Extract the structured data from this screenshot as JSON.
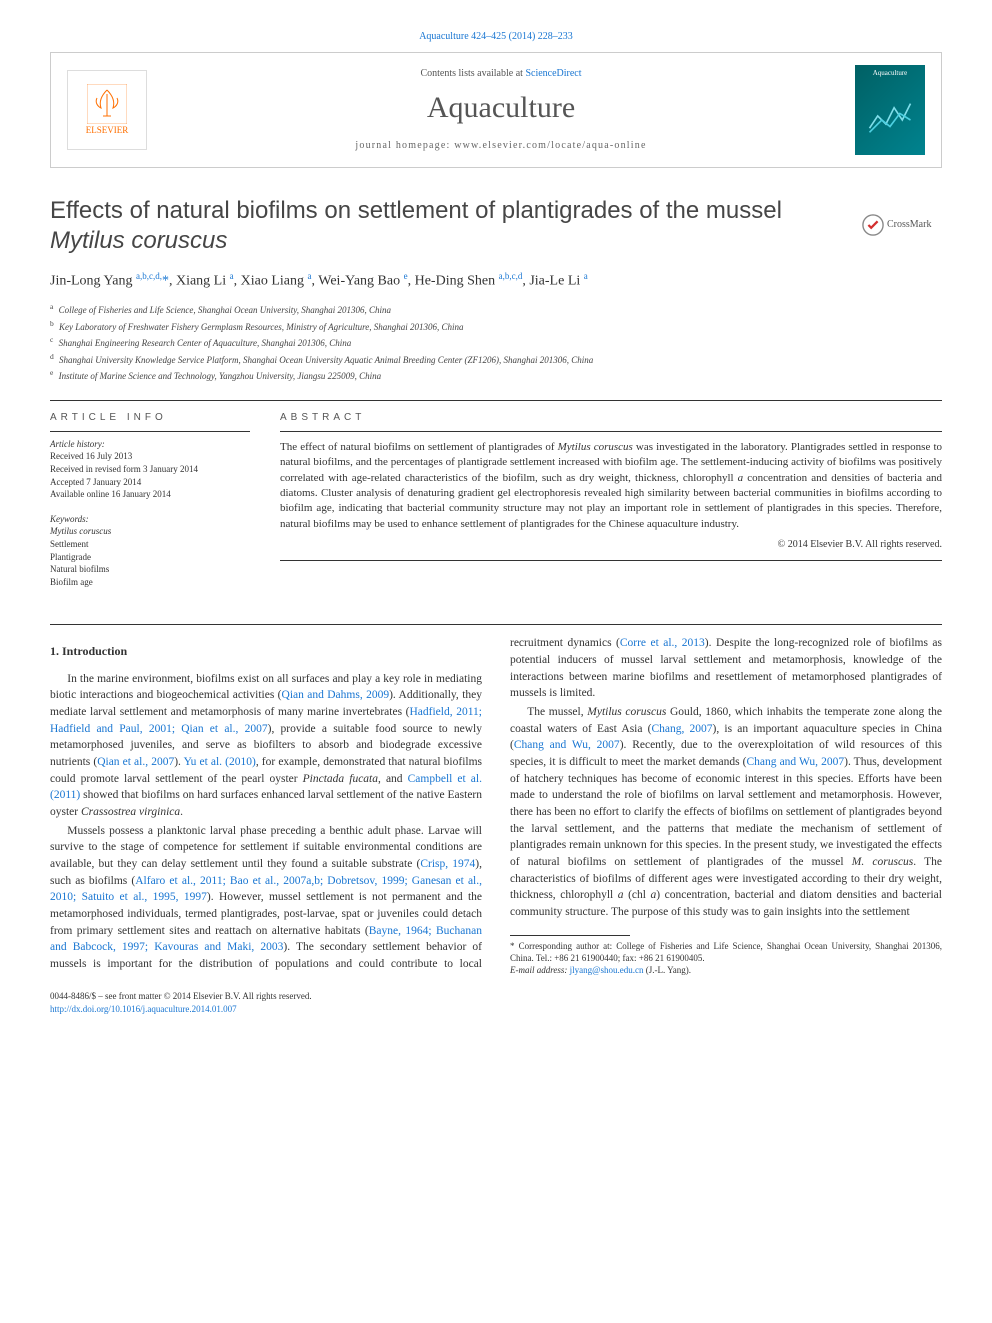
{
  "journal_link": "Aquaculture 424–425 (2014) 228–233",
  "header": {
    "contents": "Contents lists available at ",
    "contents_link": "ScienceDirect",
    "journal": "Aquaculture",
    "homepage": "journal homepage: www.elsevier.com/locate/aqua-online",
    "publisher": "ELSEVIER",
    "cover_title": "Aquaculture"
  },
  "crossmark": "CrossMark",
  "title_part1": "Effects of natural biofilms on settlement of plantigrades of the mussel ",
  "title_part2": "Mytilus coruscus",
  "authors_html": "Jin-Long Yang <sup><a>a,b,c,d,</a></sup><a>*</a>, Xiang Li <sup><a>a</a></sup>, Xiao Liang <sup><a>a</a></sup>, Wei-Yang Bao <sup><a>e</a></sup>, He-Ding Shen <sup><a>a,b,c,d</a></sup>, Jia-Le Li <sup><a>a</a></sup>",
  "affiliations": [
    {
      "sup": "a",
      "text": "College of Fisheries and Life Science, Shanghai Ocean University, Shanghai 201306, China"
    },
    {
      "sup": "b",
      "text": "Key Laboratory of Freshwater Fishery Germplasm Resources, Ministry of Agriculture, Shanghai 201306, China"
    },
    {
      "sup": "c",
      "text": "Shanghai Engineering Research Center of Aquaculture, Shanghai 201306, China"
    },
    {
      "sup": "d",
      "text": "Shanghai University Knowledge Service Platform, Shanghai Ocean University Aquatic Animal Breeding Center (ZF1206), Shanghai 201306, China"
    },
    {
      "sup": "e",
      "text": "Institute of Marine Science and Technology, Yangzhou University, Jiangsu 225009, China"
    }
  ],
  "info": {
    "heading": "article info",
    "history_label": "Article history:",
    "history": [
      "Received 16 July 2013",
      "Received in revised form 3 January 2014",
      "Accepted 7 January 2014",
      "Available online 16 January 2014"
    ],
    "keywords_label": "Keywords:",
    "keywords": [
      "Mytilus coruscus",
      "Settlement",
      "Plantigrade",
      "Natural biofilms",
      "Biofilm age"
    ]
  },
  "abstract": {
    "heading": "abstract",
    "text_parts": [
      "The effect of natural biofilms on settlement of plantigrades of ",
      "Mytilus coruscus",
      " was investigated in the laboratory. Plantigrades settled in response to natural biofilms, and the percentages of plantigrade settlement increased with biofilm age. The settlement-inducing activity of biofilms was positively correlated with age-related characteristics of the biofilm, such as dry weight, thickness, chlorophyll ",
      "a",
      " concentration and densities of bacteria and diatoms. Cluster analysis of denaturing gradient gel electrophoresis revealed high similarity between bacterial communities in biofilms according to biofilm age, indicating that bacterial community structure may not play an important role in settlement of plantigrades in this species. Therefore, natural biofilms may be used to enhance settlement of plantigrades for the Chinese aquaculture industry."
    ],
    "copyright": "© 2014 Elsevier B.V. All rights reserved."
  },
  "body": {
    "section_heading": "1. Introduction",
    "p1": "In the marine environment, biofilms exist on all surfaces and play a key role in mediating biotic interactions and biogeochemical activities (<a>Qian and Dahms, 2009</a>). Additionally, they mediate larval settlement and metamorphosis of many marine invertebrates (<a>Hadfield, 2011; Hadfield and Paul, 2001; Qian et al., 2007</a>), provide a suitable food source to newly metamorphosed juveniles, and serve as biofilters to absorb and biodegrade excessive nutrients (<a>Qian et al., 2007</a>). <a>Yu et al. (2010)</a>, for example, demonstrated that natural biofilms could promote larval settlement of the pearl oyster <span class=\"italic\">Pinctada fucata</span>, and <a>Campbell et al. (2011)</a> showed that biofilms on hard surfaces enhanced larval settlement of the native Eastern oyster <span class=\"italic\">Crassostrea virginica</span>.",
    "p2": "Mussels possess a planktonic larval phase preceding a benthic adult phase. Larvae will survive to the stage of competence for settlement if suitable environmental conditions are available, but they can delay settlement until they found a suitable substrate (<a>Crisp, 1974</a>), such as biofilms (<a>Alfaro et al., 2011; Bao et al., 2007a,b; Dobretsov, 1999; Ganesan et al., 2010; Satuito et al., 1995, 1997</a>). However, mussel settlement is not permanent and the metamorphosed individuals, termed plantigrades, post-larvae, spat or juveniles could detach from primary settlement sites and reattach on alternative habitats (<a>Bayne, 1964; Buchanan and Babcock, 1997; Kavouras and Maki, 2003</a>). The secondary settlement behavior of mussels is important for the distribution of populations and could contribute to local recruitment dynamics (<a>Corre et al., 2013</a>). Despite the long-recognized role of biofilms as potential inducers of mussel larval settlement and metamorphosis, knowledge of the interactions between marine biofilms and resettlement of metamorphosed plantigrades of mussels is limited.",
    "p3": "The mussel, <span class=\"italic\">Mytilus coruscus</span> Gould, 1860, which inhabits the temperate zone along the coastal waters of East Asia (<a>Chang, 2007</a>), is an important aquaculture species in China (<a>Chang and Wu, 2007</a>). Recently, due to the overexploitation of wild resources of this species, it is difficult to meet the market demands (<a>Chang and Wu, 2007</a>). Thus, development of hatchery techniques has become of economic interest in this species. Efforts have been made to understand the role of biofilms on larval settlement and metamorphosis. However, there has been no effort to clarify the effects of biofilms on settlement of plantigrades beyond the larval settlement, and the patterns that mediate the mechanism of settlement of plantigrades remain unknown for this species. In the present study, we investigated the effects of natural biofilms on settlement of plantigrades of the mussel <span class=\"italic\">M. coruscus</span>. The characteristics of biofilms of different ages were investigated according to their dry weight, thickness, chlorophyll <span class=\"italic\">a</span> (chl <span class=\"italic\">a</span>) concentration, bacterial and diatom densities and bacterial community structure. The purpose of this study was to gain insights into the settlement"
  },
  "footnote": {
    "corr": "* Corresponding author at: College of Fisheries and Life Science, Shanghai Ocean University, Shanghai 201306, China. Tel.: +86 21 61900440; fax: +86 21 61900405.",
    "email_label": "E-mail address:",
    "email": "jlyang@shou.edu.cn",
    "email_who": "(J.-L. Yang)."
  },
  "footer": {
    "issn": "0044-8486/$ – see front matter © 2014 Elsevier B.V. All rights reserved.",
    "doi": "http://dx.doi.org/10.1016/j.aquaculture.2014.01.007"
  },
  "colors": {
    "link": "#1976d2",
    "text": "#333333",
    "heading": "#555555",
    "rule": "#333333",
    "publisher": "#ff6f00",
    "cover_bg1": "#006064",
    "cover_bg2": "#00838f"
  }
}
